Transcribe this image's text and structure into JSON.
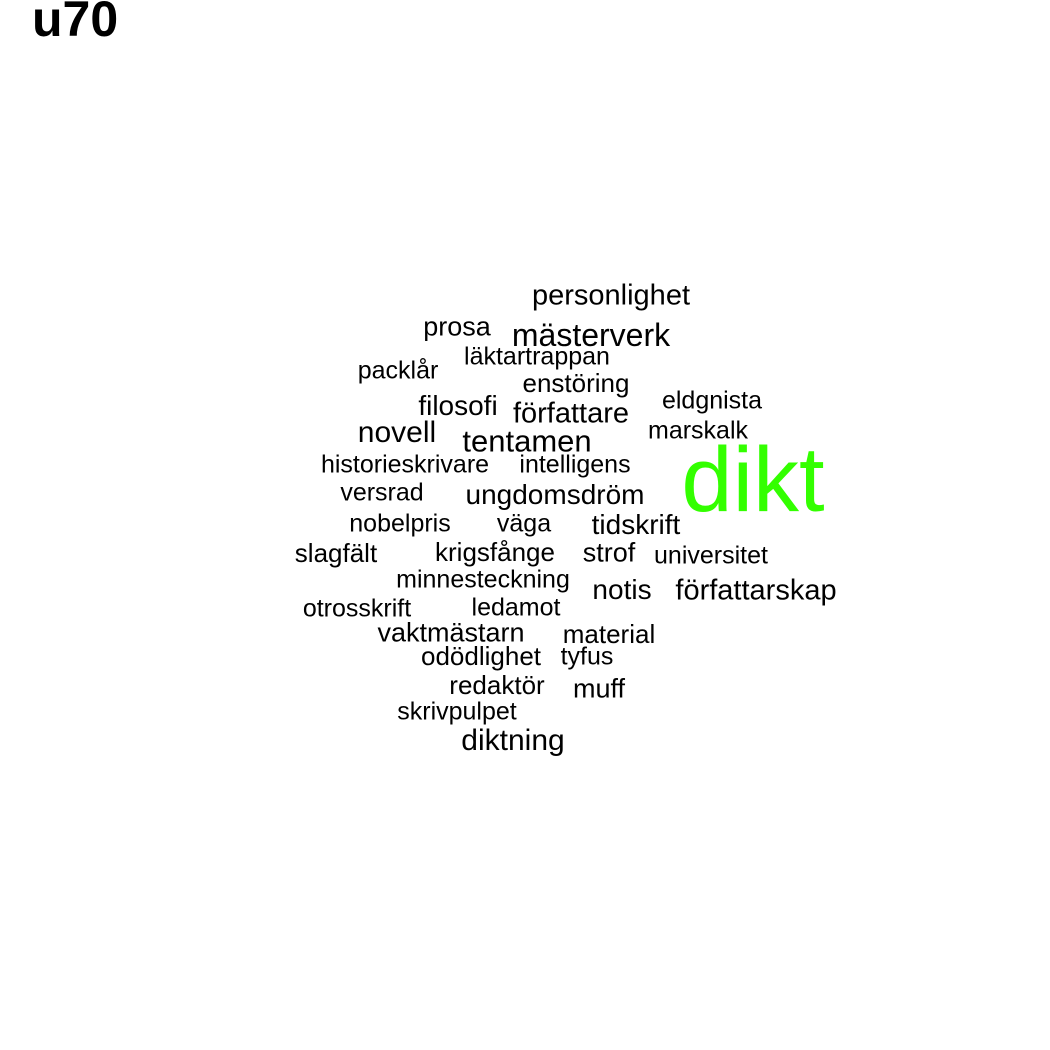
{
  "title": "u70",
  "highlight_color": "#33ff00",
  "text_color": "#000000",
  "words": [
    {
      "text": "personlighet"
    },
    {
      "text": "prosa"
    },
    {
      "text": "mästerverk"
    },
    {
      "text": "läktartrappan"
    },
    {
      "text": "packlår"
    },
    {
      "text": "enstöring"
    },
    {
      "text": "eldgnista"
    },
    {
      "text": "filosofi"
    },
    {
      "text": "författare"
    },
    {
      "text": "novell"
    },
    {
      "text": "tentamen"
    },
    {
      "text": "marskalk"
    },
    {
      "text": "dikt",
      "highlight": true
    },
    {
      "text": "historieskrivare"
    },
    {
      "text": "intelligens"
    },
    {
      "text": "versrad"
    },
    {
      "text": "ungdomsdröm"
    },
    {
      "text": "nobelpris"
    },
    {
      "text": "väga"
    },
    {
      "text": "tidskrift"
    },
    {
      "text": "slagfält"
    },
    {
      "text": "krigsfånge"
    },
    {
      "text": "strof"
    },
    {
      "text": "universitet"
    },
    {
      "text": "minnesteckning"
    },
    {
      "text": "notis"
    },
    {
      "text": "författarskap"
    },
    {
      "text": "otrosskrift"
    },
    {
      "text": "ledamot"
    },
    {
      "text": "vaktmästarn"
    },
    {
      "text": "material"
    },
    {
      "text": "odödlighet"
    },
    {
      "text": "tyfus"
    },
    {
      "text": "redaktör"
    },
    {
      "text": "muff"
    },
    {
      "text": "skrivpulpet"
    },
    {
      "text": "diktning"
    }
  ]
}
